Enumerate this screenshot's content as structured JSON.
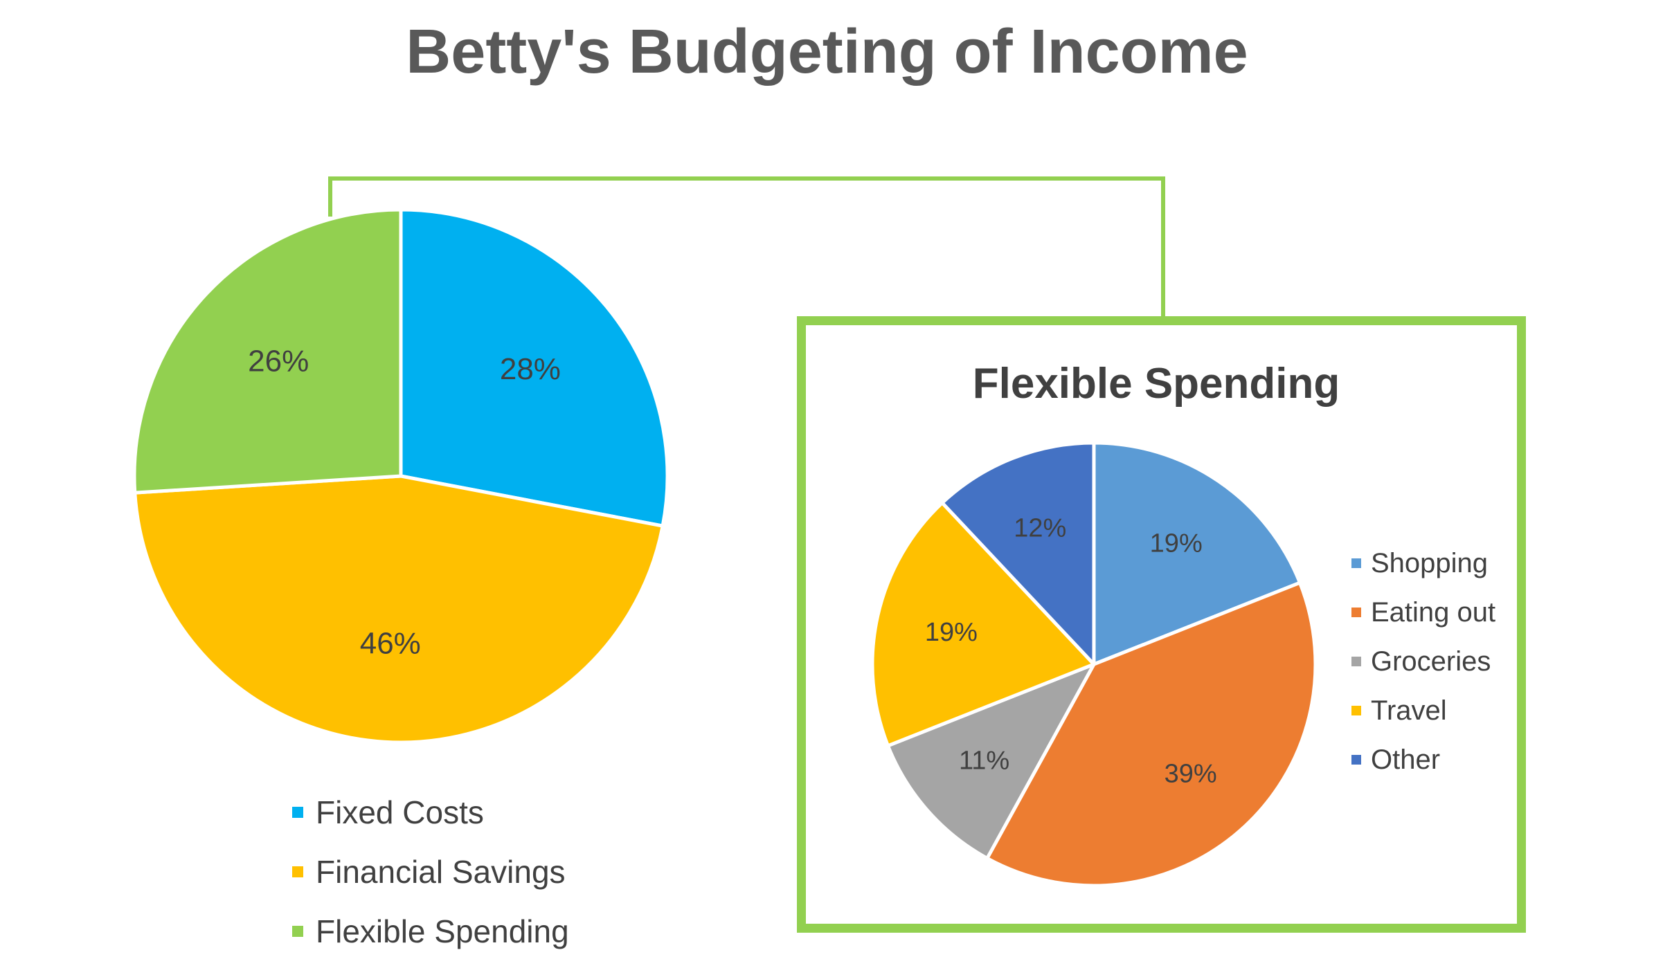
{
  "title": "Betty's Budgeting of Income",
  "chart_data": [
    {
      "type": "pie",
      "title": "",
      "categories": [
        "Fixed Costs",
        "Financial Savings",
        "Flexible Spending"
      ],
      "values": [
        28,
        46,
        26
      ],
      "labels": [
        "28%",
        "46%",
        "26%"
      ],
      "colors": [
        "#00B0F0",
        "#FFC000",
        "#92D050"
      ],
      "legend_position": "bottom"
    },
    {
      "type": "pie",
      "title": "Flexible Spending",
      "categories": [
        "Shopping",
        "Eating out",
        "Groceries",
        "Travel",
        "Other"
      ],
      "values": [
        19,
        39,
        11,
        19,
        12
      ],
      "labels": [
        "19%",
        "39%",
        "11%",
        "19%",
        "12%"
      ],
      "colors": [
        "#5B9BD5",
        "#ED7D31",
        "#A5A5A5",
        "#FFC000",
        "#4472C4"
      ],
      "legend_position": "right"
    }
  ],
  "connector_color": "#92D050",
  "frame_color": "#92D050"
}
